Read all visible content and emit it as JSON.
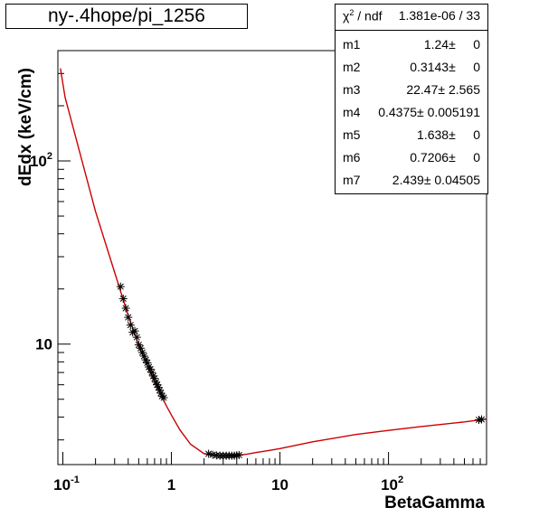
{
  "chart_data": {
    "type": "scatter",
    "title": "ny-.4hope/pi_1256",
    "xlabel": "BetaGamma",
    "ylabel": "dEdx (keV/cm)",
    "xscale": "log",
    "yscale": "log",
    "xlim": [
      0.09,
      800
    ],
    "ylim": [
      2.2,
      400
    ],
    "grid": false,
    "x_ticks": [
      {
        "value": 0.1,
        "base": "10",
        "exp": "-1"
      },
      {
        "value": 1,
        "base": "1",
        "exp": ""
      },
      {
        "value": 10,
        "base": "10",
        "exp": ""
      },
      {
        "value": 100,
        "base": "10",
        "exp": "2"
      }
    ],
    "y_ticks": [
      {
        "value": 10,
        "base": "10",
        "exp": ""
      },
      {
        "value": 100,
        "base": "10",
        "exp": "2"
      }
    ],
    "series": [
      {
        "marker": "star",
        "x": [
          0.34,
          0.36,
          0.38,
          0.4,
          0.42,
          0.44,
          0.46,
          0.48,
          0.5,
          0.52,
          0.54,
          0.56,
          0.58,
          0.6,
          0.62,
          0.64,
          0.66,
          0.68,
          0.7,
          0.72,
          0.74,
          0.76,
          0.78,
          0.8,
          0.82,
          0.85,
          2.2,
          2.4,
          2.6,
          2.8,
          3.0,
          3.2,
          3.4,
          3.6,
          3.8,
          4.0,
          4.2,
          680,
          720
        ],
        "y": [
          20.6,
          17.7,
          15.7,
          14.0,
          12.7,
          11.6,
          11.8,
          10.9,
          9.9,
          9.5,
          9.0,
          8.6,
          8.2,
          7.9,
          7.5,
          7.3,
          7.0,
          6.7,
          6.5,
          6.2,
          6.0,
          5.8,
          5.6,
          5.4,
          5.2,
          5.1,
          2.52,
          2.49,
          2.47,
          2.46,
          2.46,
          2.46,
          2.46,
          2.46,
          2.46,
          2.47,
          2.48,
          3.86,
          3.88
        ]
      }
    ],
    "fit_curve": {
      "color": "#cc0000",
      "x": [
        0.095,
        0.105,
        0.2,
        0.3,
        0.4,
        0.5,
        0.6,
        0.7,
        0.8,
        0.9,
        1.0,
        1.2,
        1.5,
        2.0,
        2.5,
        3.0,
        3.5,
        4.0,
        5.0,
        6.0,
        8.0,
        10,
        20,
        50,
        100,
        200,
        500,
        800
      ],
      "y": [
        320,
        222,
        53,
        24.6,
        14.3,
        9.9,
        7.6,
        6.2,
        5.3,
        4.6,
        4.1,
        3.4,
        2.84,
        2.52,
        2.47,
        2.46,
        2.46,
        2.47,
        2.51,
        2.56,
        2.63,
        2.69,
        2.93,
        3.21,
        3.38,
        3.55,
        3.76,
        3.9
      ]
    }
  },
  "stats_box": {
    "rows": [
      {
        "name": "m1",
        "value": "1.24±     0"
      },
      {
        "name": "m2",
        "value": "0.3143±     0"
      },
      {
        "name": "m3",
        "value": "22.47± 2.565"
      },
      {
        "name": "m4",
        "value": "0.4375± 0.005191"
      },
      {
        "name": "m5",
        "value": "1.638±     0"
      },
      {
        "name": "m6",
        "value": "0.7206±     0"
      },
      {
        "name": "m7",
        "value": "2.439± 0.04505"
      }
    ],
    "chi_label": "χ",
    "chi_sup": "2",
    "chi_suffix": " / ndf",
    "chi_value": "1.381e-06 / 33"
  },
  "colors": {
    "curve": "#cc0000",
    "markers": "#000000",
    "frame": "#000000"
  }
}
